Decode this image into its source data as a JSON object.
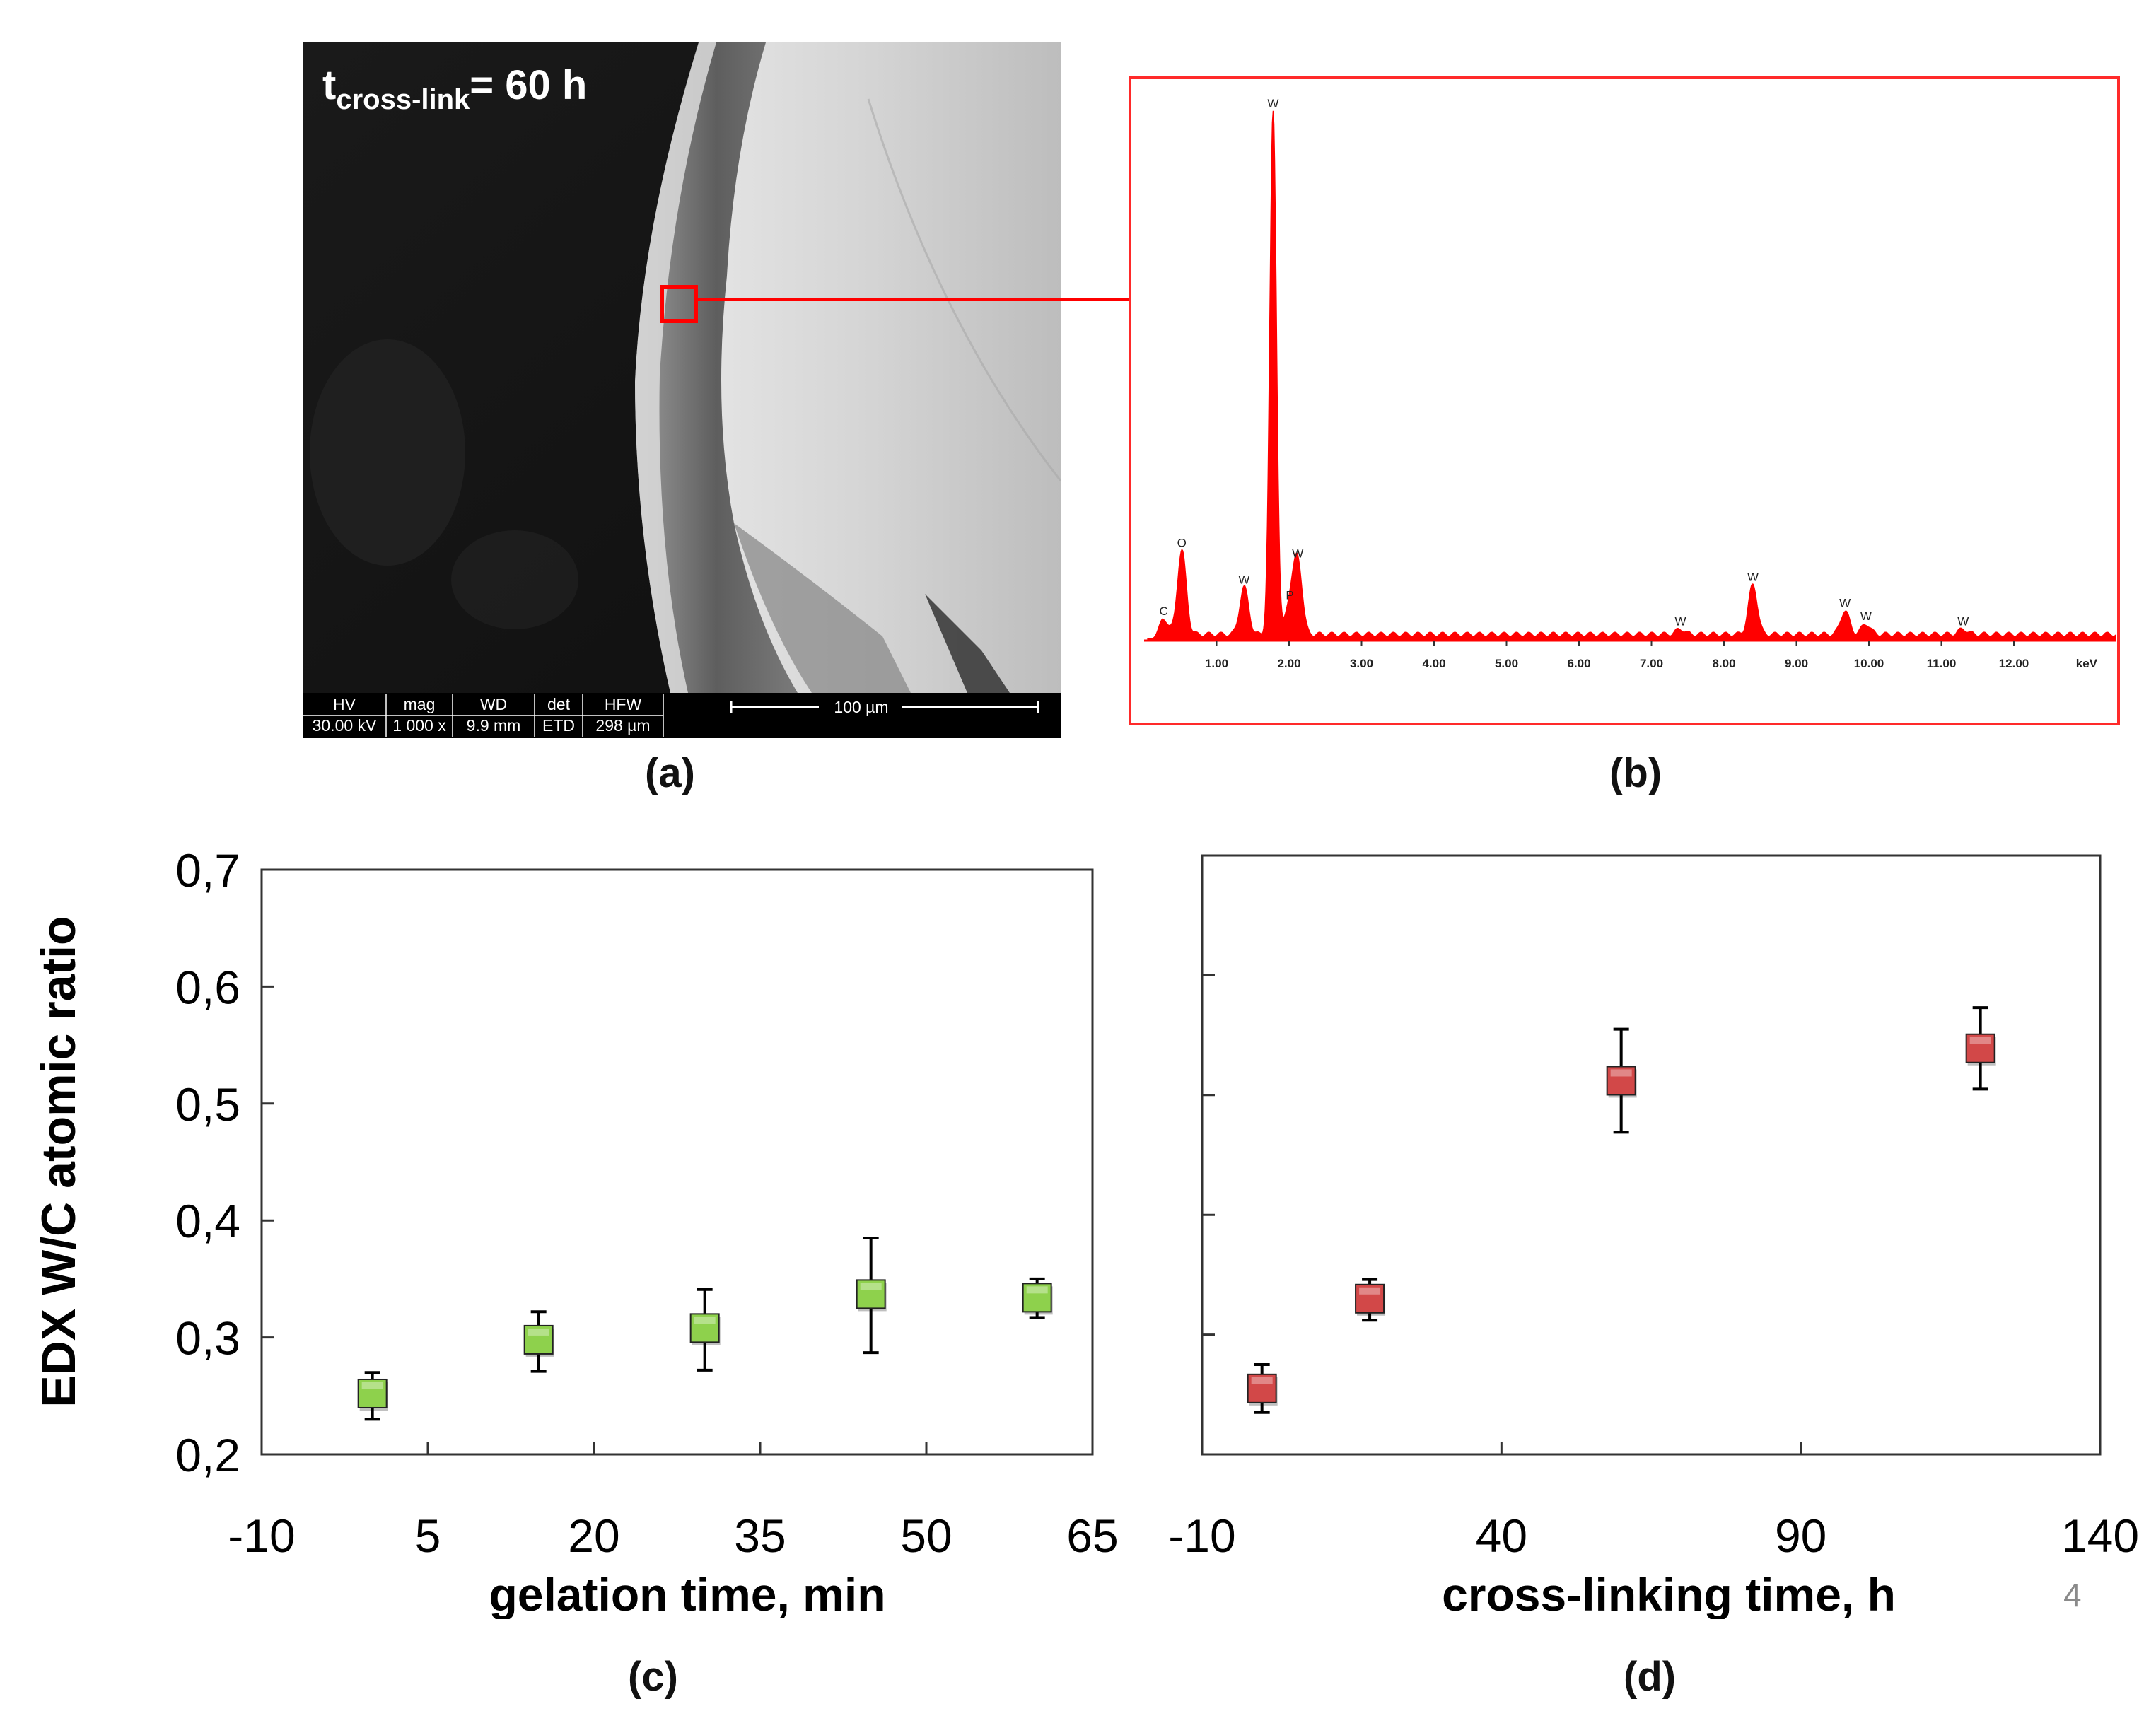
{
  "figure": {
    "panel_labels": {
      "a": "(a)",
      "b": "(b)",
      "c": "(c)",
      "d": "(d)"
    },
    "corner_mark": "4",
    "colors": {
      "edx_red": "#ff0000",
      "green_marker": "#8ed14c",
      "red_marker": "#d24848",
      "axis": "#333333"
    }
  },
  "sem": {
    "label_main": "t",
    "label_sub": "cross-link",
    "label_rest": "= 60 h",
    "info_bar": {
      "headers": [
        "HV",
        "mag",
        "WD",
        "det",
        "HFW"
      ],
      "values": [
        "30.00 kV",
        "1 000 x",
        "9.9 mm",
        "ETD",
        "298 µm"
      ],
      "scale_label": "100 µm"
    }
  },
  "edx": {
    "x_ticks": [
      "1.00",
      "2.00",
      "3.00",
      "4.00",
      "5.00",
      "6.00",
      "7.00",
      "8.00",
      "9.00",
      "10.00",
      "11.00",
      "12.00"
    ],
    "x_unit": "keV",
    "peaks": [
      {
        "label": "C",
        "e": 0.27,
        "h": 0.03
      },
      {
        "label": "O",
        "e": 0.52,
        "h": 0.16
      },
      {
        "label": "W",
        "e": 1.38,
        "h": 0.09
      },
      {
        "label": "W",
        "e": 1.78,
        "h": 1.0
      },
      {
        "label": "P",
        "e": 2.01,
        "h": 0.06
      },
      {
        "label": "W",
        "e": 2.12,
        "h": 0.14
      },
      {
        "label": "W",
        "e": 7.4,
        "h": 0.01
      },
      {
        "label": "W",
        "e": 8.4,
        "h": 0.095
      },
      {
        "label": "W",
        "e": 9.67,
        "h": 0.045
      },
      {
        "label": "W",
        "e": 9.96,
        "h": 0.02
      },
      {
        "label": "W",
        "e": 11.3,
        "h": 0.01
      }
    ]
  },
  "chart_data": [
    {
      "type": "scatter",
      "panel": "(c)",
      "xlabel": "gelation time, min",
      "ylabel": "EDX W/C atomic ratio",
      "xlim": [
        -10,
        65
      ],
      "ylim": [
        0.2,
        0.7
      ],
      "x_ticks": [
        -10,
        5,
        20,
        35,
        50,
        65
      ],
      "x_tick_labels": [
        "-10",
        "5",
        "20",
        "35",
        "50",
        "65"
      ],
      "y_ticks": [
        0.2,
        0.3,
        0.4,
        0.5,
        0.6,
        0.7
      ],
      "y_tick_labels": [
        "0,2",
        "0,3",
        "0,4",
        "0,5",
        "0,6",
        "0,7"
      ],
      "series": [
        {
          "name": "gelation",
          "color": "#8ed14c",
          "points": [
            {
              "x": 0,
              "y": 0.252,
              "err_low": 0.022,
              "err_high": 0.018
            },
            {
              "x": 15,
              "y": 0.298,
              "err_low": 0.027,
              "err_high": 0.024
            },
            {
              "x": 30,
              "y": 0.308,
              "err_low": 0.036,
              "err_high": 0.033
            },
            {
              "x": 45,
              "y": 0.337,
              "err_low": 0.05,
              "err_high": 0.048
            },
            {
              "x": 60,
              "y": 0.334,
              "err_low": 0.017,
              "err_high": 0.016
            }
          ]
        }
      ]
    },
    {
      "type": "scatter",
      "panel": "(d)",
      "xlabel": "cross-linking time, h",
      "ylabel": "",
      "xlim": [
        -10,
        140
      ],
      "ylim": [
        0.2,
        0.7
      ],
      "x_ticks": [
        -10,
        40,
        90,
        140
      ],
      "x_tick_labels": [
        "-10",
        "40",
        "90",
        "140"
      ],
      "y_ticks": [
        0.2,
        0.3,
        0.4,
        0.5,
        0.6,
        0.7
      ],
      "series": [
        {
          "name": "cross-linking",
          "color": "#d24848",
          "points": [
            {
              "x": 0,
              "y": 0.255,
              "err_low": 0.02,
              "err_high": 0.02
            },
            {
              "x": 18,
              "y": 0.33,
              "err_low": 0.018,
              "err_high": 0.016
            },
            {
              "x": 60,
              "y": 0.512,
              "err_low": 0.043,
              "err_high": 0.043
            },
            {
              "x": 120,
              "y": 0.539,
              "err_low": 0.034,
              "err_high": 0.034
            }
          ]
        }
      ]
    }
  ]
}
